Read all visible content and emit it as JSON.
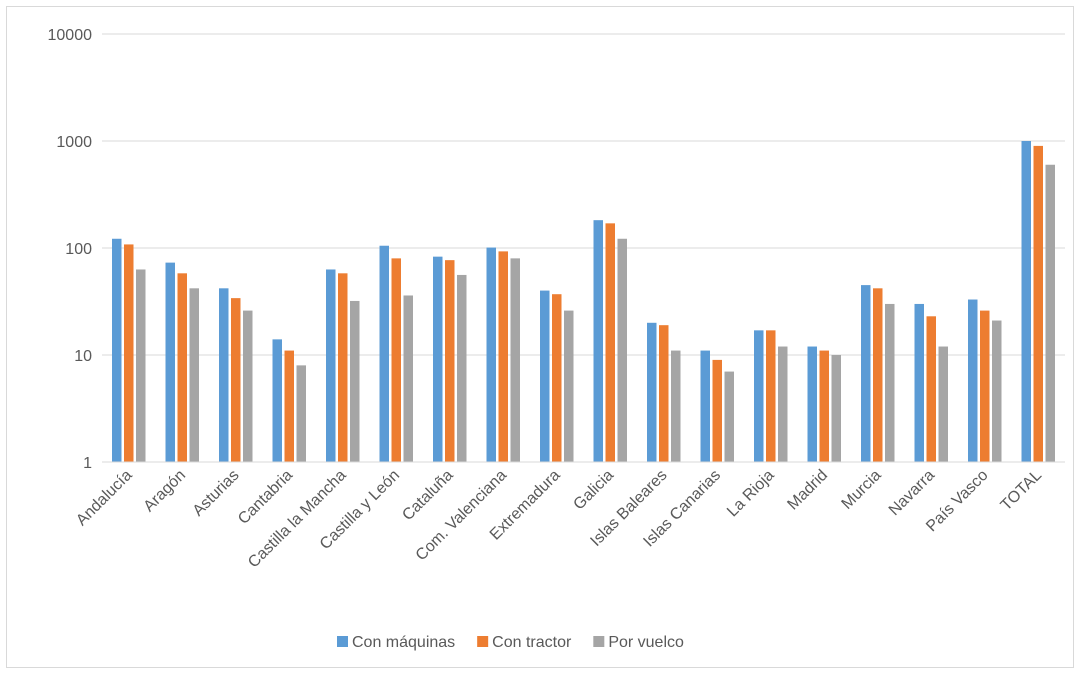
{
  "chart_data": {
    "type": "bar",
    "scale": "log",
    "ylim": [
      1,
      10000
    ],
    "yticks": [
      "1",
      "10",
      "100",
      "1000",
      "10000"
    ],
    "grid": true,
    "legend_position": "bottom",
    "categories": [
      "Andalucía",
      "Aragón",
      "Asturias",
      "Cantabria",
      "Castilla la Mancha",
      "Castilla y León",
      "Cataluña",
      "Com. Valenciana",
      "Extremadura",
      "Galicia",
      "Islas Baleares",
      "Islas Canarias",
      "La Rioja",
      "Madrid",
      "Murcia",
      "Navarra",
      "País Vasco",
      "TOTAL"
    ],
    "series": [
      {
        "name": "Con máquinas",
        "color": "#5b9bd5",
        "values": [
          122,
          73,
          42,
          14,
          63,
          105,
          83,
          101,
          40,
          182,
          20,
          11,
          17,
          12,
          45,
          30,
          33,
          1000
        ]
      },
      {
        "name": "Con tractor",
        "color": "#ed7d31",
        "values": [
          108,
          58,
          34,
          11,
          58,
          80,
          77,
          93,
          37,
          170,
          19,
          9,
          17,
          11,
          42,
          23,
          26,
          900
        ]
      },
      {
        "name": "Por vuelco",
        "color": "#a5a5a5",
        "values": [
          63,
          42,
          26,
          8,
          32,
          36,
          56,
          80,
          26,
          122,
          11,
          7,
          12,
          10,
          30,
          12,
          21,
          600
        ]
      }
    ]
  }
}
